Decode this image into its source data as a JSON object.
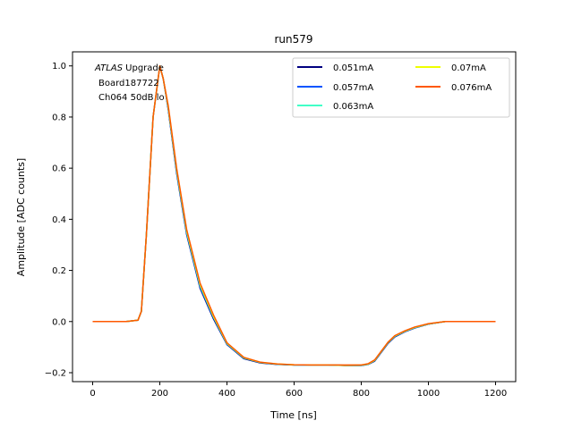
{
  "chart_data": {
    "type": "line",
    "title": "run579",
    "xlabel": "Time [ns]",
    "ylabel": "Amplitude [ADC counts]",
    "xlim": [
      -60,
      1260
    ],
    "ylim": [
      -0.235,
      1.055
    ],
    "xticks": [
      0,
      200,
      400,
      600,
      800,
      1000,
      1200
    ],
    "yticks": [
      -0.2,
      0.0,
      0.2,
      0.4,
      0.6,
      0.8,
      1.0
    ],
    "xtick_labels": [
      "0",
      "200",
      "400",
      "600",
      "800",
      "1000",
      "1200"
    ],
    "ytick_labels": [
      "−0.2",
      "0.0",
      "0.2",
      "0.4",
      "0.6",
      "0.8",
      "1.0"
    ],
    "grid": false,
    "legend_position": "top-right",
    "annotation": {
      "italic": "ATLAS",
      "line1_rest": " Upgrade",
      "line2": "Board187722",
      "line3": "Ch064 50dB lo"
    },
    "series": [
      {
        "name": "0.051mA",
        "color": "#00007f",
        "x": [
          0,
          100,
          135,
          145,
          160,
          180,
          200,
          210,
          225,
          250,
          280,
          320,
          360,
          400,
          450,
          500,
          550,
          600,
          650,
          700,
          750,
          800,
          820,
          840,
          860,
          880,
          900,
          930,
          960,
          1000,
          1050,
          1100,
          1150,
          1200
        ],
        "y": [
          0.0,
          0.0,
          0.005,
          0.04,
          0.34,
          0.8,
          1.0,
          0.95,
          0.83,
          0.58,
          0.34,
          0.13,
          0.01,
          -0.09,
          -0.145,
          -0.162,
          -0.168,
          -0.17,
          -0.17,
          -0.17,
          -0.172,
          -0.172,
          -0.168,
          -0.155,
          -0.12,
          -0.085,
          -0.06,
          -0.04,
          -0.025,
          -0.01,
          0.0,
          0.0,
          0.0,
          0.0
        ]
      },
      {
        "name": "0.057mA",
        "color": "#0055ff",
        "x": [
          0,
          100,
          135,
          145,
          160,
          180,
          200,
          210,
          225,
          250,
          280,
          320,
          360,
          400,
          450,
          500,
          550,
          600,
          650,
          700,
          750,
          800,
          820,
          840,
          860,
          880,
          900,
          930,
          960,
          1000,
          1050,
          1100,
          1150,
          1200
        ],
        "y": [
          0.0,
          0.0,
          0.005,
          0.04,
          0.34,
          0.8,
          1.0,
          0.95,
          0.835,
          0.585,
          0.345,
          0.135,
          0.015,
          -0.088,
          -0.143,
          -0.161,
          -0.167,
          -0.17,
          -0.17,
          -0.17,
          -0.171,
          -0.171,
          -0.167,
          -0.153,
          -0.118,
          -0.083,
          -0.058,
          -0.039,
          -0.024,
          -0.01,
          0.0,
          0.0,
          0.0,
          0.0
        ]
      },
      {
        "name": "0.063mA",
        "color": "#41ffc7",
        "x": [
          0,
          100,
          135,
          145,
          160,
          180,
          200,
          210,
          225,
          250,
          280,
          320,
          360,
          400,
          450,
          500,
          550,
          600,
          650,
          700,
          750,
          800,
          820,
          840,
          860,
          880,
          900,
          930,
          960,
          1000,
          1050,
          1100,
          1150,
          1200
        ],
        "y": [
          0.0,
          0.0,
          0.005,
          0.04,
          0.34,
          0.8,
          1.0,
          0.95,
          0.838,
          0.59,
          0.35,
          0.14,
          0.018,
          -0.086,
          -0.142,
          -0.16,
          -0.167,
          -0.17,
          -0.17,
          -0.17,
          -0.171,
          -0.171,
          -0.167,
          -0.152,
          -0.117,
          -0.082,
          -0.057,
          -0.038,
          -0.023,
          -0.009,
          0.0,
          0.0,
          0.0,
          0.0
        ]
      },
      {
        "name": "0.07mA",
        "color": "#eeff00",
        "x": [
          0,
          100,
          135,
          145,
          160,
          180,
          200,
          210,
          225,
          250,
          280,
          320,
          360,
          400,
          450,
          500,
          550,
          600,
          650,
          700,
          750,
          800,
          820,
          840,
          860,
          880,
          900,
          930,
          960,
          1000,
          1050,
          1100,
          1150,
          1200
        ],
        "y": [
          0.0,
          0.0,
          0.005,
          0.04,
          0.34,
          0.8,
          1.0,
          0.95,
          0.84,
          0.595,
          0.355,
          0.145,
          0.02,
          -0.085,
          -0.141,
          -0.16,
          -0.166,
          -0.169,
          -0.17,
          -0.17,
          -0.171,
          -0.17,
          -0.166,
          -0.151,
          -0.116,
          -0.081,
          -0.056,
          -0.037,
          -0.022,
          -0.009,
          0.0,
          0.0,
          0.0,
          0.0
        ]
      },
      {
        "name": "0.076mA",
        "color": "#ff5800",
        "x": [
          0,
          100,
          135,
          145,
          160,
          180,
          200,
          210,
          225,
          250,
          280,
          320,
          360,
          400,
          450,
          500,
          550,
          600,
          650,
          700,
          750,
          800,
          820,
          840,
          860,
          880,
          900,
          930,
          960,
          1000,
          1050,
          1100,
          1150,
          1200
        ],
        "y": [
          0.0,
          0.0,
          0.005,
          0.04,
          0.34,
          0.8,
          1.0,
          0.95,
          0.845,
          0.6,
          0.36,
          0.15,
          0.025,
          -0.083,
          -0.14,
          -0.159,
          -0.166,
          -0.169,
          -0.17,
          -0.17,
          -0.17,
          -0.17,
          -0.165,
          -0.15,
          -0.115,
          -0.08,
          -0.055,
          -0.036,
          -0.021,
          -0.008,
          0.0,
          0.0,
          0.0,
          0.0
        ]
      }
    ]
  }
}
